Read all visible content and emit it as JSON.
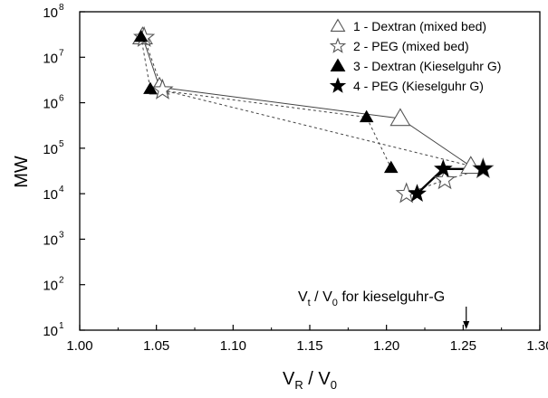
{
  "chart_data": {
    "type": "line",
    "xlabel": {
      "main": "V",
      "sub1": "R",
      "mid": " / V",
      "sub2": "0"
    },
    "ylabel": "MW",
    "xlim": [
      1.0,
      1.3
    ],
    "ylim_log10": [
      1,
      8
    ],
    "y_scale": "log",
    "x_ticks": [
      "1.00",
      "1.05",
      "1.10",
      "1.15",
      "1.20",
      "1.25",
      "1.30"
    ],
    "x_tick_values": [
      1.0,
      1.05,
      1.1,
      1.15,
      1.2,
      1.25,
      1.3
    ],
    "y_tick_exponents": [
      1,
      2,
      3,
      4,
      5,
      6,
      7,
      8
    ],
    "y_tick_base": "10",
    "legend_position": "top-right",
    "series": [
      {
        "name": "1 - Dextran (mixed bed)",
        "marker": "open-triangle",
        "line": "solid",
        "x": [
          1.041,
          1.052,
          1.209,
          1.255
        ],
        "y": [
          28000000,
          2200000,
          450000,
          40000
        ]
      },
      {
        "name": "2 - PEG (mixed bed)",
        "marker": "open-star",
        "line": "dashed",
        "x": [
          1.042,
          1.054,
          1.263,
          1.238,
          1.213
        ],
        "y": [
          27000000,
          1900000,
          35000,
          20000,
          10000
        ]
      },
      {
        "name": "3 - Dextran (Kieselguhr G)",
        "marker": "filled-triangle",
        "line": "dashed",
        "x": [
          1.04,
          1.046,
          1.187,
          1.203
        ],
        "y": [
          28000000,
          2000000,
          480000,
          37000
        ]
      },
      {
        "name": "4 - PEG (Kieselguhr G)",
        "marker": "filled-star",
        "line": "thick-solid",
        "x": [
          1.22,
          1.237,
          1.263
        ],
        "y": [
          10000,
          35000,
          35000
        ]
      }
    ],
    "annotation": {
      "pre": "V",
      "sub1": "t",
      "mid": " / V",
      "sub2": "0",
      "post": " for kieselguhr-G",
      "arrow_x": 1.252
    }
  }
}
